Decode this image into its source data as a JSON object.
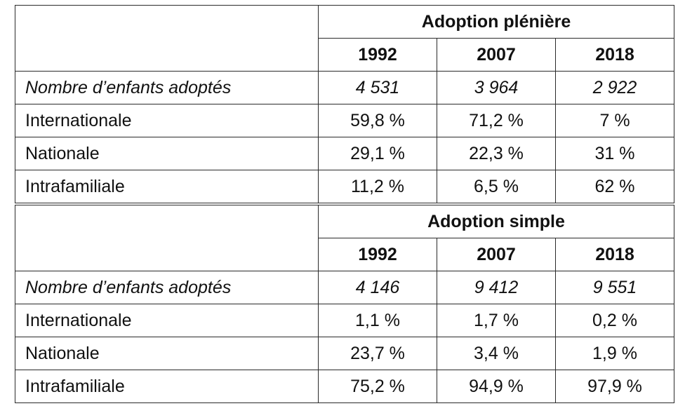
{
  "sections": [
    {
      "title": "Adoption plénière",
      "years": [
        "1992",
        "2007",
        "2018"
      ],
      "rows": [
        {
          "label": "Nombre d’enfants adoptés",
          "values": [
            "4 531",
            "3 964",
            "2 922"
          ],
          "italic": true
        },
        {
          "label": "Internationale",
          "values": [
            "59,8 %",
            "71,2 %",
            "7 %"
          ]
        },
        {
          "label": "Nationale",
          "values": [
            "29,1 %",
            "22,3 %",
            "31 %"
          ]
        },
        {
          "label": "Intrafamiliale",
          "values": [
            "11,2 %",
            "6,5 %",
            "62 %"
          ]
        }
      ]
    },
    {
      "title": "Adoption simple",
      "years": [
        "1992",
        "2007",
        "2018"
      ],
      "rows": [
        {
          "label": "Nombre d’enfants adoptés",
          "values": [
            "4 146",
            "9 412",
            "9 551"
          ],
          "italic": true
        },
        {
          "label": "Internationale",
          "values": [
            "1,1 %",
            "1,7 %",
            "0,2 %"
          ]
        },
        {
          "label": "Nationale",
          "values": [
            "23,7 %",
            "3,4 %",
            "1,9 %"
          ]
        },
        {
          "label": "Intrafamiliale",
          "values": [
            "75,2 %",
            "94,9 %",
            "97,9 %"
          ]
        }
      ]
    }
  ]
}
